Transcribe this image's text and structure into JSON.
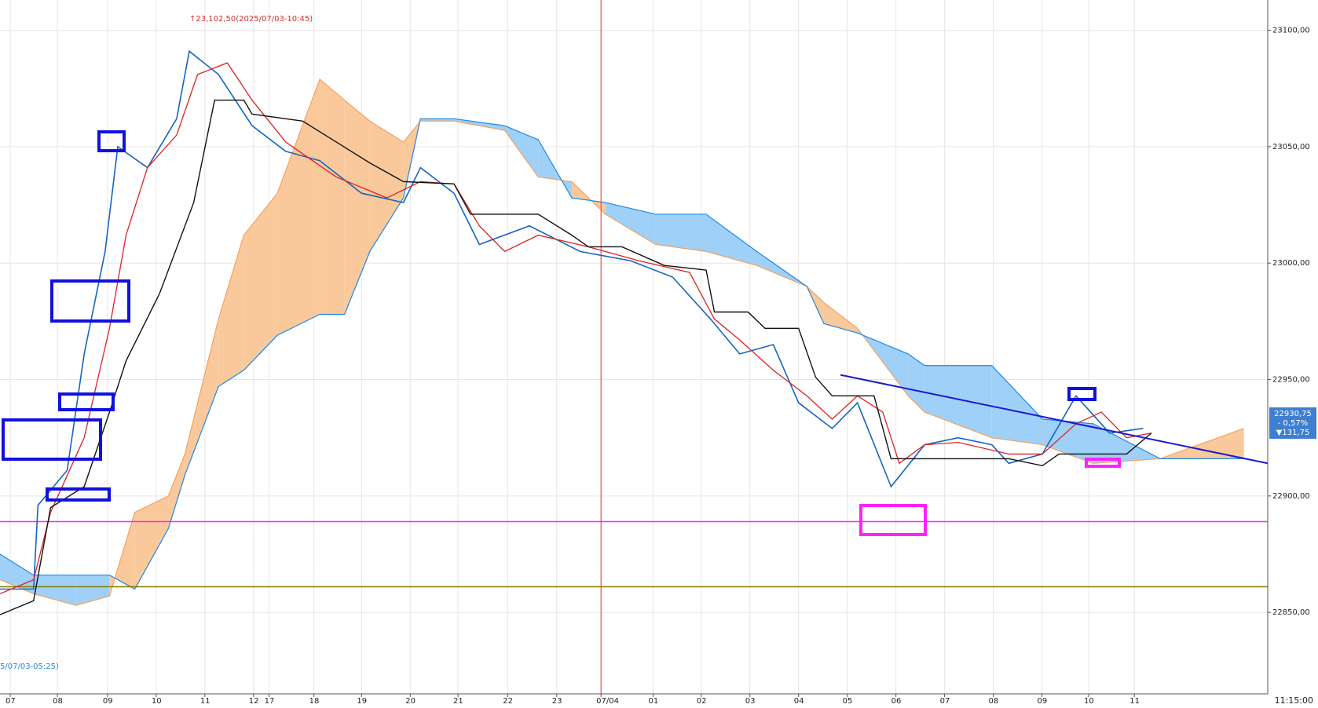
{
  "chart_data": {
    "type": "ichimoku",
    "xlim": [
      -0.21,
      25.84
    ],
    "ylim": [
      22815,
      23113
    ],
    "xticks": [
      {
        "value": 0,
        "label": "07"
      },
      {
        "value": 0.97,
        "label": "08"
      },
      {
        "value": 2.0,
        "label": "09"
      },
      {
        "value": 3.0,
        "label": "10"
      },
      {
        "value": 4.0,
        "label": "11"
      },
      {
        "value": 5.0,
        "label": "12"
      },
      {
        "value": 5.32,
        "label": "17"
      },
      {
        "value": 6.24,
        "label": "18"
      },
      {
        "value": 7.22,
        "label": "19"
      },
      {
        "value": 8.22,
        "label": "20"
      },
      {
        "value": 9.2,
        "label": "21"
      },
      {
        "value": 10.22,
        "label": "22"
      },
      {
        "value": 11.23,
        "label": "23"
      },
      {
        "value": 12.14,
        "label": "07/04"
      },
      {
        "value": 13.21,
        "label": "01"
      },
      {
        "value": 14.2,
        "label": "02"
      },
      {
        "value": 15.2,
        "label": "03"
      },
      {
        "value": 16.2,
        "label": "04"
      },
      {
        "value": 17.2,
        "label": "05"
      },
      {
        "value": 18.2,
        "label": "06"
      },
      {
        "value": 19.2,
        "label": "07"
      },
      {
        "value": 20.2,
        "label": "08"
      },
      {
        "value": 21.2,
        "label": "09"
      },
      {
        "value": 22.16,
        "label": "10"
      },
      {
        "value": 23.1,
        "label": "11"
      }
    ],
    "yticks": [
      {
        "value": 22850,
        "label": "22850,00"
      },
      {
        "value": 22900,
        "label": "22900,00"
      },
      {
        "value": 22950,
        "label": "22950,00"
      },
      {
        "value": 23000,
        "label": "23000,00"
      },
      {
        "value": 23050,
        "label": "23050,00"
      },
      {
        "value": 23100,
        "label": "23100,00"
      }
    ],
    "grid": true,
    "time_label": "11:15:00",
    "separator_x": 12.14,
    "separator_color": "#e53935",
    "high_annotation": "↑23,102,50(2025/07/03-10:45)",
    "low_annotation": "5/07/03-05:25)",
    "last_price": "22930,75",
    "change_pct": "- 0,57%",
    "change": "▼131,75",
    "cloud": {
      "x": [
        -0.21,
        0.48,
        1.35,
        2.04,
        2.56,
        3.25,
        3.59,
        4.28,
        4.8,
        5.49,
        6.36,
        6.87,
        7.39,
        8.08,
        8.43,
        9.12,
        10.16,
        10.85,
        11.54,
        12.23,
        13.26,
        14.3,
        15.34,
        16.37,
        16.72,
        17.41,
        18.45,
        18.79,
        20.17,
        21.21,
        22.25,
        23.63,
        25.35
      ],
      "span_a": [
        22864,
        22858,
        22853,
        22857,
        22893,
        22900,
        22918,
        22976,
        23012,
        23030,
        23079,
        23070,
        23061,
        23052,
        23061,
        23061,
        23057,
        23037,
        23035,
        23021,
        23008,
        23005,
        22999,
        22990,
        22983,
        22972,
        22943,
        22936,
        22925,
        22922,
        22914,
        22916,
        22929
      ],
      "span_b": [
        22875,
        22866,
        22866,
        22866,
        22860,
        22886,
        22909,
        22947,
        22954,
        22969,
        22978,
        22978,
        23005,
        23028,
        23062,
        23062,
        23059,
        23053,
        23028,
        23026,
        23021,
        23021,
        23005,
        22990,
        22974,
        22970,
        22961,
        22956,
        22956,
        22933,
        22931,
        22916,
        22916
      ],
      "color_a": "#f9c99c",
      "color_b": "#9fd0f7",
      "edge_a": "#f5a25e",
      "edge_b": "#1e88e5"
    },
    "series": [
      {
        "color": "#1565c0",
        "width": 1.6,
        "x": [
          -0.21,
          0.48,
          0.57,
          1.17,
          1.52,
          1.95,
          2.21,
          2.82,
          3.42,
          3.68,
          4.28,
          4.97,
          5.66,
          6.36,
          7.22,
          8.08,
          8.43,
          9.12,
          9.64,
          10.67,
          11.71,
          12.75,
          13.61,
          14.39,
          14.99,
          15.68,
          16.2,
          16.89,
          17.41,
          18.1,
          18.79,
          19.48,
          20.17,
          20.52,
          21.21,
          21.9,
          22.59,
          23.28
        ],
        "values": [
          22860,
          22860,
          22896,
          22911,
          22961,
          23005,
          23050,
          23041,
          23062,
          23091,
          23081,
          23059,
          23048,
          23044,
          23030,
          23026,
          23041,
          23030,
          23008,
          23016,
          23005,
          23001,
          22994,
          22976,
          22961,
          22965,
          22940,
          22929,
          22940,
          22904,
          22922,
          22925,
          22922,
          22914,
          22918,
          22943,
          22927,
          22929
        ]
      },
      {
        "color": "#e02020",
        "width": 1.3,
        "x": [
          -0.21,
          0.48,
          0.83,
          1.52,
          2.04,
          2.38,
          2.82,
          3.42,
          3.85,
          4.46,
          4.97,
          5.66,
          6.7,
          7.74,
          8.43,
          9.12,
          9.64,
          10.16,
          10.85,
          11.88,
          12.92,
          13.96,
          14.47,
          14.99,
          15.68,
          16.37,
          16.89,
          17.41,
          17.93,
          18.27,
          18.79,
          19.48,
          20.52,
          21.21,
          21.9,
          22.42,
          22.94,
          23.45
        ],
        "values": [
          22858,
          22864,
          22893,
          22925,
          22972,
          23012,
          23041,
          23055,
          23081,
          23086,
          23070,
          23052,
          23037,
          23028,
          23035,
          23034,
          23016,
          23005,
          23012,
          23007,
          23001,
          22996,
          22976,
          22967,
          22954,
          22943,
          22933,
          22943,
          22936,
          22914,
          22922,
          22923,
          22918,
          22918,
          22931,
          22936,
          22925,
          22927
        ]
      },
      {
        "color": "#111111",
        "width": 1.4,
        "x": [
          -0.21,
          0.48,
          0.83,
          1.52,
          2.04,
          2.38,
          3.07,
          3.77,
          4.2,
          4.8,
          4.97,
          6.01,
          6.7,
          7.39,
          8.08,
          9.12,
          9.46,
          10.85,
          11.54,
          11.88,
          12.57,
          13.44,
          14.3,
          14.47,
          15.16,
          15.51,
          16.2,
          16.55,
          16.89,
          17.75,
          18.1,
          20.52,
          21.21,
          21.55,
          22.94,
          23.45
        ],
        "values": [
          22849,
          22855,
          22895,
          22904,
          22936,
          22958,
          22987,
          23026,
          23070,
          23070,
          23064,
          23061,
          23052,
          23043,
          23035,
          23034,
          23021,
          23021,
          23012,
          23007,
          23007,
          22999,
          22997,
          22979,
          22979,
          22972,
          22972,
          22951,
          22943,
          22943,
          22916,
          22916,
          22913,
          22918,
          22918,
          22927
        ]
      }
    ],
    "levels": [
      {
        "value": 22889,
        "color": "#ff22ff"
      },
      {
        "value": 22861,
        "color": "#8a7a00"
      }
    ],
    "trendline": {
      "x": [
        17.06,
        25.84
      ],
      "values": [
        22952,
        22914
      ],
      "color": "#1a1acc"
    }
  }
}
